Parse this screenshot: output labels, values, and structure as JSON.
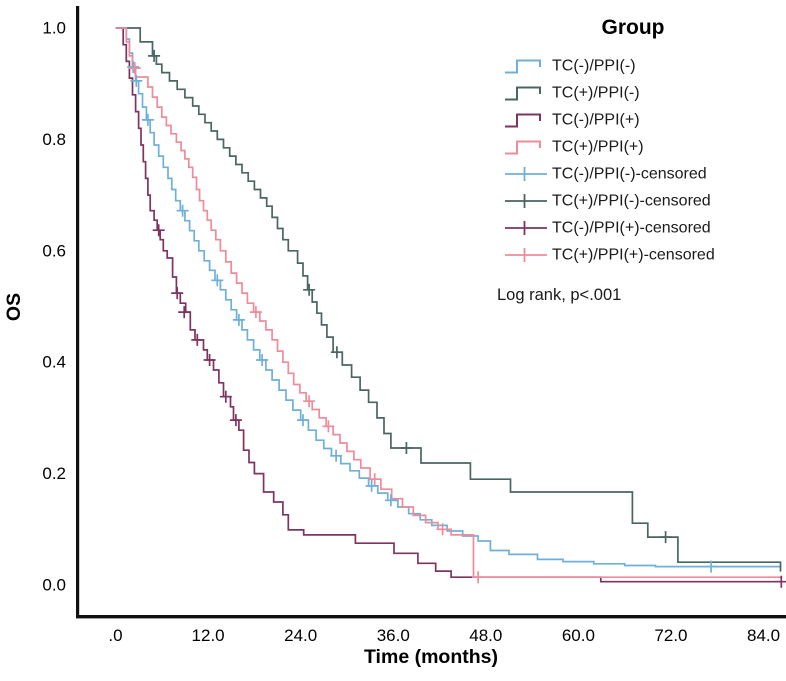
{
  "axes": {
    "x_title": "Time (months)",
    "y_title": "OS",
    "x_tick_values": [
      0,
      12,
      24,
      36,
      48,
      60,
      72,
      84
    ],
    "x_tick_labels": [
      ".0",
      "12.0",
      "24.0",
      "36.0",
      "48.0",
      "60.0",
      "72.0",
      "84.0"
    ],
    "y_tick_values": [
      0.0,
      0.2,
      0.4,
      0.6,
      0.8,
      1.0
    ],
    "y_tick_labels": [
      "0.0",
      "0.2",
      "0.4",
      "0.6",
      "0.8",
      "1.0"
    ]
  },
  "legend": {
    "title": "Group",
    "items": [
      {
        "label": "TC(-)/PPI(-)",
        "type": "step",
        "color": "#6FB0D9"
      },
      {
        "label": "TC(+)/PPI(-)",
        "type": "step",
        "color": "#4A6562"
      },
      {
        "label": "TC(-)/PPI(+)",
        "type": "step",
        "color": "#7E3460"
      },
      {
        "label": "TC(+)/PPI(+)",
        "type": "step",
        "color": "#EF8B9B"
      },
      {
        "label": "TC(-)/PPI(-)-censored",
        "type": "censored",
        "color": "#6FB0D9"
      },
      {
        "label": "TC(+)/PPI(-)-censored",
        "type": "censored",
        "color": "#4A6562"
      },
      {
        "label": "TC(-)/PPI(+)-censored",
        "type": "censored",
        "color": "#7E3460"
      },
      {
        "label": "TC(+)/PPI(+)-censored",
        "type": "censored",
        "color": "#EF8B9B"
      }
    ]
  },
  "annotation": {
    "log_rank": "Log rank, p<.001"
  },
  "chart_data": {
    "type": "line",
    "subtype": "kaplan_meier_step",
    "title": "",
    "xlabel": "Time (months)",
    "ylabel": "OS",
    "xlim": [
      0,
      87.5
    ],
    "ylim": [
      0,
      1.0
    ],
    "grid": false,
    "legend_position": "top-right",
    "series": [
      {
        "name": "TC(-)/PPI(-)",
        "color": "#6FB0D9",
        "steps": [
          [
            0,
            1.0
          ],
          [
            1.4,
            0.98
          ],
          [
            1.8,
            0.955
          ],
          [
            2.2,
            0.93
          ],
          [
            2.6,
            0.905
          ],
          [
            3.0,
            0.882
          ],
          [
            3.5,
            0.858
          ],
          [
            4.0,
            0.835
          ],
          [
            4.5,
            0.812
          ],
          [
            5.0,
            0.79
          ],
          [
            5.6,
            0.77
          ],
          [
            6.2,
            0.75
          ],
          [
            6.8,
            0.73
          ],
          [
            7.3,
            0.71
          ],
          [
            7.8,
            0.69
          ],
          [
            8.4,
            0.672
          ],
          [
            9.0,
            0.654
          ],
          [
            9.6,
            0.636
          ],
          [
            10.2,
            0.618
          ],
          [
            10.8,
            0.6
          ],
          [
            11.5,
            0.582
          ],
          [
            12.2,
            0.565
          ],
          [
            12.9,
            0.547
          ],
          [
            13.6,
            0.53
          ],
          [
            14.3,
            0.512
          ],
          [
            15.0,
            0.494
          ],
          [
            15.7,
            0.476
          ],
          [
            16.4,
            0.458
          ],
          [
            17.1,
            0.44
          ],
          [
            17.9,
            0.422
          ],
          [
            18.7,
            0.404
          ],
          [
            19.5,
            0.386
          ],
          [
            20.3,
            0.368
          ],
          [
            21.2,
            0.35
          ],
          [
            22.1,
            0.332
          ],
          [
            23.0,
            0.314
          ],
          [
            24.0,
            0.296
          ],
          [
            25.0,
            0.278
          ],
          [
            26.0,
            0.26
          ],
          [
            27.0,
            0.245
          ],
          [
            28.0,
            0.232
          ],
          [
            29.2,
            0.218
          ],
          [
            30.4,
            0.205
          ],
          [
            31.6,
            0.192
          ],
          [
            32.8,
            0.178
          ],
          [
            34.0,
            0.165
          ],
          [
            35.3,
            0.152
          ],
          [
            36.6,
            0.14
          ],
          [
            38.0,
            0.128
          ],
          [
            39.5,
            0.117
          ],
          [
            41.0,
            0.107
          ],
          [
            43.0,
            0.097
          ],
          [
            45.0,
            0.088
          ],
          [
            47.0,
            0.079
          ],
          [
            48.6,
            0.062
          ],
          [
            51.0,
            0.055
          ],
          [
            54.7,
            0.046
          ],
          [
            58.0,
            0.042
          ],
          [
            62.0,
            0.038
          ],
          [
            66.0,
            0.035
          ],
          [
            70.0,
            0.033
          ],
          [
            86.3,
            0.033
          ]
        ],
        "censored": [
          [
            2.3,
            0.93
          ],
          [
            2.7,
            0.905
          ],
          [
            4.2,
            0.835
          ],
          [
            8.7,
            0.672
          ],
          [
            13.2,
            0.547
          ],
          [
            16.0,
            0.476
          ],
          [
            19.0,
            0.404
          ],
          [
            24.3,
            0.296
          ],
          [
            28.6,
            0.232
          ],
          [
            33.2,
            0.178
          ],
          [
            35.7,
            0.152
          ],
          [
            77.2,
            0.033
          ]
        ]
      },
      {
        "name": "TC(+)/PPI(-)",
        "color": "#4A6562",
        "steps": [
          [
            0,
            1.0
          ],
          [
            3.2,
            0.975
          ],
          [
            4.8,
            0.95
          ],
          [
            5.3,
            0.935
          ],
          [
            6.0,
            0.92
          ],
          [
            7.0,
            0.905
          ],
          [
            8.0,
            0.89
          ],
          [
            9.0,
            0.875
          ],
          [
            10.0,
            0.86
          ],
          [
            10.8,
            0.845
          ],
          [
            11.6,
            0.83
          ],
          [
            12.4,
            0.815
          ],
          [
            13.2,
            0.8
          ],
          [
            14.0,
            0.785
          ],
          [
            14.8,
            0.77
          ],
          [
            15.6,
            0.755
          ],
          [
            16.4,
            0.74
          ],
          [
            17.2,
            0.725
          ],
          [
            18.0,
            0.71
          ],
          [
            18.8,
            0.695
          ],
          [
            19.6,
            0.68
          ],
          [
            20.3,
            0.66
          ],
          [
            21.0,
            0.64
          ],
          [
            21.7,
            0.62
          ],
          [
            22.4,
            0.6
          ],
          [
            23.6,
            0.578
          ],
          [
            24.3,
            0.555
          ],
          [
            24.9,
            0.53
          ],
          [
            25.5,
            0.508
          ],
          [
            26.1,
            0.488
          ],
          [
            26.7,
            0.467
          ],
          [
            27.4,
            0.445
          ],
          [
            28.2,
            0.418
          ],
          [
            29.4,
            0.395
          ],
          [
            30.6,
            0.373
          ],
          [
            31.7,
            0.35
          ],
          [
            32.8,
            0.328
          ],
          [
            33.9,
            0.3
          ],
          [
            34.8,
            0.272
          ],
          [
            35.7,
            0.246
          ],
          [
            39.6,
            0.219
          ],
          [
            46.0,
            0.19
          ],
          [
            51.2,
            0.167
          ],
          [
            67.0,
            0.111
          ],
          [
            69.0,
            0.086
          ],
          [
            72.9,
            0.041
          ],
          [
            86.0,
            0.041
          ],
          [
            86.2,
            0.024
          ]
        ],
        "censored": [
          [
            5.0,
            0.95
          ],
          [
            25.1,
            0.53
          ],
          [
            28.7,
            0.418
          ],
          [
            37.7,
            0.246
          ],
          [
            71.3,
            0.086
          ]
        ]
      },
      {
        "name": "TC(-)/PPI(+)",
        "color": "#7E3460",
        "steps": [
          [
            0,
            1.0
          ],
          [
            1.0,
            0.97
          ],
          [
            1.4,
            0.94
          ],
          [
            1.8,
            0.91
          ],
          [
            2.2,
            0.88
          ],
          [
            2.6,
            0.85
          ],
          [
            3.0,
            0.82
          ],
          [
            3.3,
            0.79
          ],
          [
            3.6,
            0.76
          ],
          [
            3.9,
            0.73
          ],
          [
            4.2,
            0.7
          ],
          [
            4.5,
            0.672
          ],
          [
            5.0,
            0.655
          ],
          [
            5.4,
            0.637
          ],
          [
            5.8,
            0.62
          ],
          [
            6.2,
            0.6
          ],
          [
            6.7,
            0.587
          ],
          [
            7.4,
            0.553
          ],
          [
            7.9,
            0.524
          ],
          [
            8.4,
            0.506
          ],
          [
            9.1,
            0.49
          ],
          [
            9.7,
            0.458
          ],
          [
            10.3,
            0.44
          ],
          [
            11.4,
            0.422
          ],
          [
            11.9,
            0.404
          ],
          [
            12.7,
            0.386
          ],
          [
            13.4,
            0.363
          ],
          [
            14.0,
            0.338
          ],
          [
            14.9,
            0.32
          ],
          [
            15.3,
            0.296
          ],
          [
            16.0,
            0.278
          ],
          [
            16.6,
            0.242
          ],
          [
            17.3,
            0.22
          ],
          [
            18.0,
            0.2
          ],
          [
            19.2,
            0.167
          ],
          [
            20.5,
            0.149
          ],
          [
            21.7,
            0.126
          ],
          [
            22.4,
            0.099
          ],
          [
            24.4,
            0.09
          ],
          [
            31.1,
            0.075
          ],
          [
            36.1,
            0.057
          ],
          [
            39.2,
            0.039
          ],
          [
            41.5,
            0.025
          ],
          [
            43.5,
            0.014
          ],
          [
            62.9,
            0.006
          ],
          [
            86.4,
            0.006
          ]
        ],
        "censored": [
          [
            5.6,
            0.637
          ],
          [
            8.0,
            0.524
          ],
          [
            8.9,
            0.49
          ],
          [
            10.6,
            0.44
          ],
          [
            12.2,
            0.404
          ],
          [
            14.3,
            0.338
          ],
          [
            15.6,
            0.296
          ],
          [
            86.3,
            0.006
          ]
        ]
      },
      {
        "name": "TC(+)/PPI(+)",
        "color": "#EF8B9B",
        "steps": [
          [
            0,
            1.0
          ],
          [
            1.4,
            0.975
          ],
          [
            1.8,
            0.95
          ],
          [
            2.2,
            0.928
          ],
          [
            2.6,
            0.912
          ],
          [
            4.2,
            0.894
          ],
          [
            4.8,
            0.876
          ],
          [
            5.4,
            0.858
          ],
          [
            6.0,
            0.84
          ],
          [
            6.6,
            0.825
          ],
          [
            7.2,
            0.81
          ],
          [
            7.9,
            0.795
          ],
          [
            8.5,
            0.78
          ],
          [
            9.0,
            0.765
          ],
          [
            9.5,
            0.75
          ],
          [
            10.0,
            0.732
          ],
          [
            10.5,
            0.71
          ],
          [
            10.9,
            0.69
          ],
          [
            11.4,
            0.672
          ],
          [
            11.9,
            0.655
          ],
          [
            12.4,
            0.637
          ],
          [
            13.0,
            0.62
          ],
          [
            13.6,
            0.6
          ],
          [
            14.3,
            0.58
          ],
          [
            15.0,
            0.56
          ],
          [
            15.7,
            0.542
          ],
          [
            16.4,
            0.524
          ],
          [
            17.1,
            0.506
          ],
          [
            17.9,
            0.49
          ],
          [
            18.7,
            0.474
          ],
          [
            19.5,
            0.458
          ],
          [
            20.3,
            0.44
          ],
          [
            21.0,
            0.42
          ],
          [
            21.7,
            0.4
          ],
          [
            22.4,
            0.38
          ],
          [
            23.1,
            0.36
          ],
          [
            23.9,
            0.345
          ],
          [
            24.7,
            0.33
          ],
          [
            25.5,
            0.315
          ],
          [
            26.4,
            0.3
          ],
          [
            27.3,
            0.285
          ],
          [
            28.2,
            0.27
          ],
          [
            29.1,
            0.255
          ],
          [
            30.0,
            0.24
          ],
          [
            30.9,
            0.225
          ],
          [
            31.8,
            0.21
          ],
          [
            33.0,
            0.19
          ],
          [
            34.4,
            0.172
          ],
          [
            35.8,
            0.155
          ],
          [
            37.2,
            0.14
          ],
          [
            38.6,
            0.125
          ],
          [
            40.2,
            0.112
          ],
          [
            41.8,
            0.1
          ],
          [
            43.5,
            0.09
          ],
          [
            46.4,
            0.014
          ],
          [
            86.2,
            0.014
          ]
        ],
        "censored": [
          [
            2.5,
            0.928
          ],
          [
            18.2,
            0.49
          ],
          [
            25.1,
            0.33
          ],
          [
            27.6,
            0.285
          ],
          [
            33.6,
            0.19
          ],
          [
            42.4,
            0.1
          ],
          [
            47.0,
            0.014
          ]
        ]
      }
    ]
  }
}
